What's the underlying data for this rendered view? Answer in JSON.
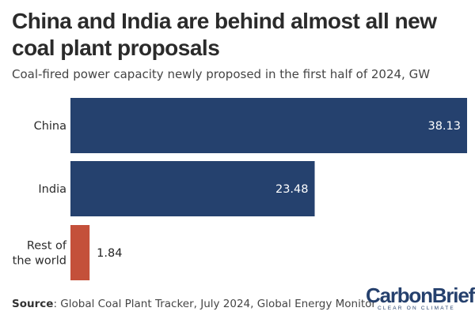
{
  "chart_data": {
    "type": "bar",
    "orientation": "horizontal",
    "title": "China and India are behind almost all new coal plant proposals",
    "subtitle": "Coal-fired power capacity newly proposed in the first half of 2024, GW",
    "categories": [
      "China",
      "India",
      "Rest of the world"
    ],
    "category_lines": [
      [
        "China"
      ],
      [
        "India"
      ],
      [
        "Rest of",
        "the world"
      ]
    ],
    "values": [
      38.13,
      23.48,
      1.84
    ],
    "value_labels": [
      "38.13",
      "23.48",
      "1.84"
    ],
    "colors": [
      "#25416e",
      "#25416e",
      "#c4503a"
    ],
    "xlim": [
      0,
      38.13
    ],
    "xlabel": "",
    "ylabel": "",
    "grid": false,
    "legend": "none"
  },
  "footer": {
    "source_label": "Source",
    "source_text": ": Global Coal Plant Tracker, July 2024, Global Energy Monitor"
  },
  "brand": {
    "name": "CarbonBrief",
    "tagline": "CLEAR ON CLIMATE",
    "color": "#25406d"
  }
}
